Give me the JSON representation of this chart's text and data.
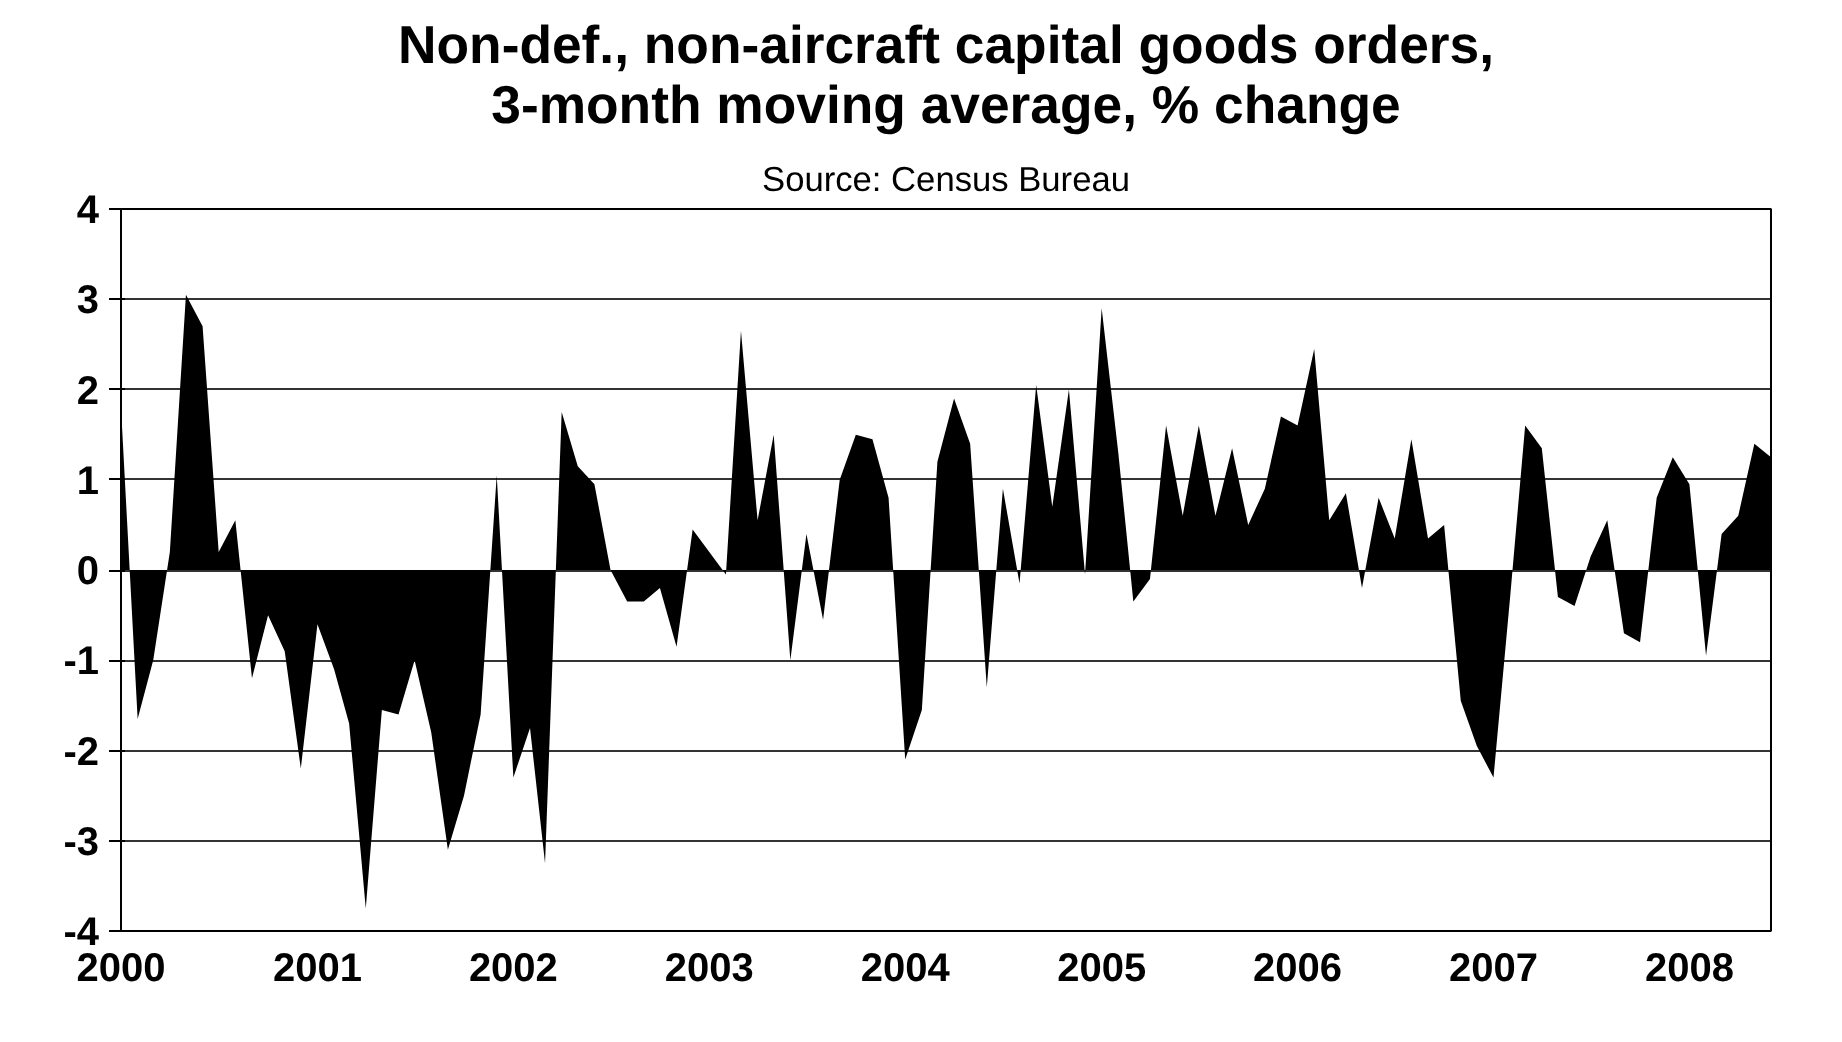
{
  "chart_data": {
    "type": "area",
    "title": "Non-def., non-aircraft capital goods orders,\n3-month moving average, % change",
    "subtitle": "Source: Census Bureau",
    "x": [
      "2000-01",
      "2000-02",
      "2000-03",
      "2000-04",
      "2000-05",
      "2000-06",
      "2000-07",
      "2000-08",
      "2000-09",
      "2000-10",
      "2000-11",
      "2000-12",
      "2001-01",
      "2001-02",
      "2001-03",
      "2001-04",
      "2001-05",
      "2001-06",
      "2001-07",
      "2001-08",
      "2001-09",
      "2001-10",
      "2001-11",
      "2001-12",
      "2002-01",
      "2002-02",
      "2002-03",
      "2002-04",
      "2002-05",
      "2002-06",
      "2002-07",
      "2002-08",
      "2002-09",
      "2002-10",
      "2002-11",
      "2002-12",
      "2003-01",
      "2003-02",
      "2003-03",
      "2003-04",
      "2003-05",
      "2003-06",
      "2003-07",
      "2003-08",
      "2003-09",
      "2003-10",
      "2003-11",
      "2003-12",
      "2004-01",
      "2004-02",
      "2004-03",
      "2004-04",
      "2004-05",
      "2004-06",
      "2004-07",
      "2004-08",
      "2004-09",
      "2004-10",
      "2004-11",
      "2004-12",
      "2005-01",
      "2005-02",
      "2005-03",
      "2005-04",
      "2005-05",
      "2005-06",
      "2005-07",
      "2005-08",
      "2005-09",
      "2005-10",
      "2005-11",
      "2005-12",
      "2006-01",
      "2006-02",
      "2006-03",
      "2006-04",
      "2006-05",
      "2006-06",
      "2006-07",
      "2006-08",
      "2006-09",
      "2006-10",
      "2006-11",
      "2006-12",
      "2007-01",
      "2007-02",
      "2007-03",
      "2007-04",
      "2007-05",
      "2007-06",
      "2007-07",
      "2007-08",
      "2007-09",
      "2007-10",
      "2007-11",
      "2007-12",
      "2008-01",
      "2008-02",
      "2008-03",
      "2008-04",
      "2008-05",
      "2008-06"
    ],
    "series": [
      {
        "color": "#000000",
        "values": [
          1.8,
          -1.65,
          -1.0,
          0.2,
          3.05,
          2.7,
          0.2,
          0.55,
          -1.2,
          -0.5,
          -0.9,
          -2.2,
          -0.6,
          -1.1,
          -1.7,
          -3.75,
          -1.55,
          -1.6,
          -1.0,
          -1.8,
          -3.1,
          -2.5,
          -1.6,
          1.05,
          -2.3,
          -1.75,
          -3.25,
          1.75,
          1.15,
          0.95,
          0.0,
          -0.35,
          -0.35,
          -0.2,
          -0.85,
          0.45,
          0.2,
          -0.05,
          2.65,
          0.55,
          1.5,
          -1.0,
          0.4,
          -0.55,
          1.0,
          1.5,
          1.45,
          0.8,
          -2.1,
          -1.55,
          1.2,
          1.9,
          1.4,
          -1.3,
          0.9,
          -0.15,
          2.05,
          0.7,
          2.0,
          -0.05,
          2.9,
          1.3,
          -0.35,
          -0.1,
          1.6,
          0.6,
          1.6,
          0.6,
          1.35,
          0.5,
          0.9,
          1.7,
          1.6,
          2.45,
          0.55,
          0.85,
          -0.2,
          0.8,
          0.35,
          1.45,
          0.35,
          0.5,
          -1.45,
          -1.95,
          -2.3,
          -0.3,
          1.6,
          1.35,
          -0.3,
          -0.4,
          0.15,
          0.55,
          -0.7,
          -0.8,
          0.8,
          1.25,
          0.95,
          -0.95,
          0.4,
          0.6,
          1.4,
          1.25
        ]
      }
    ],
    "xlim": [
      "2000-01",
      "2008-06"
    ],
    "xticks": [
      "2000",
      "2001",
      "2002",
      "2003",
      "2004",
      "2005",
      "2006",
      "2007",
      "2008"
    ],
    "ylim": [
      -4,
      4
    ],
    "yticks": [
      -4,
      -3,
      -2,
      -1,
      0,
      1,
      2,
      3,
      4
    ],
    "grid": "y"
  }
}
